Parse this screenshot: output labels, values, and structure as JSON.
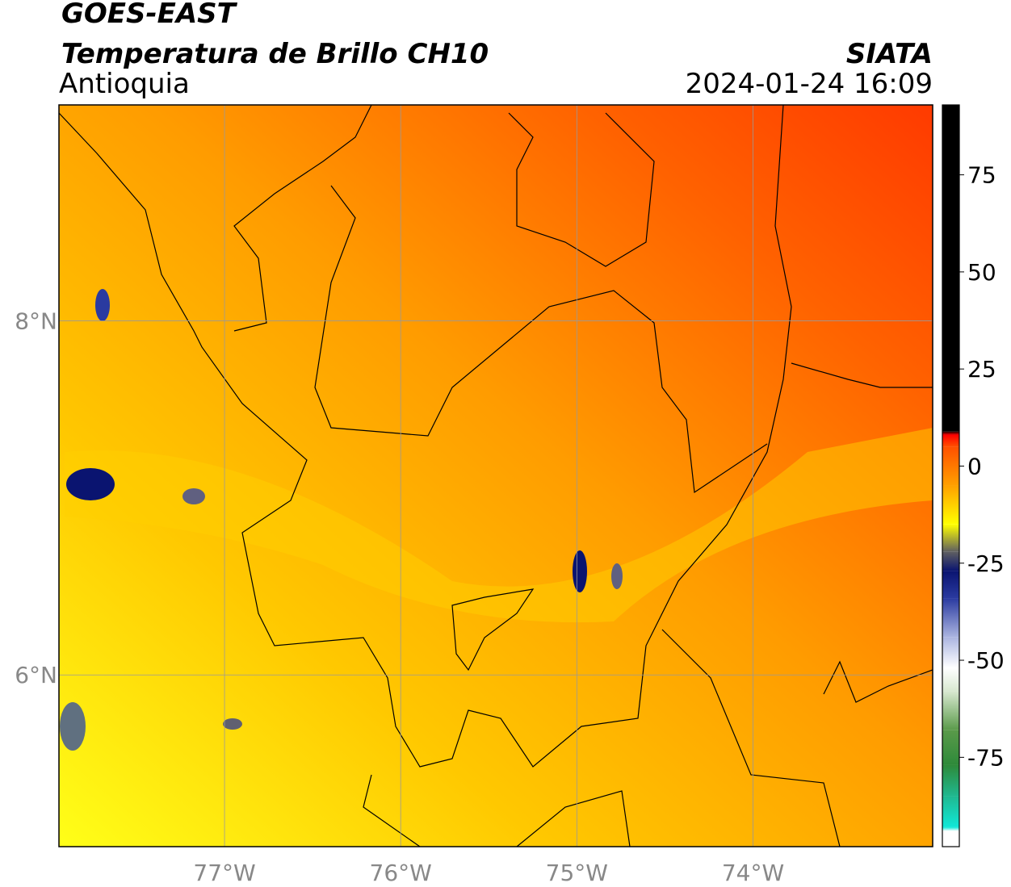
{
  "map": {
    "title": "GOES-EAST",
    "subtitle": "Temperatura de Brillo CH10",
    "region": "Antioquia",
    "source": "SIATA",
    "timestamp": "2024-01-24 16:09",
    "xlim": [
      -77.94,
      -72.98
    ],
    "ylim": [
      5.03,
      9.22
    ],
    "xticks": [
      {
        "value": -77,
        "label": "77°W"
      },
      {
        "value": -76,
        "label": "76°W"
      },
      {
        "value": -75,
        "label": "75°W"
      },
      {
        "value": -74,
        "label": "74°W"
      }
    ],
    "yticks": [
      {
        "value": 6,
        "label": "6°N"
      },
      {
        "value": 8,
        "label": "8°N"
      }
    ],
    "grid": true
  },
  "colorbar": {
    "lim": [
      -98,
      93
    ],
    "ticks": [
      75,
      50,
      25,
      0,
      -25,
      -50,
      -75
    ],
    "colorscale": [
      {
        "value": -98,
        "color": "#ffffff"
      },
      {
        "value": -94,
        "color": "#ffffff"
      },
      {
        "value": -93,
        "color": "#10e8d8"
      },
      {
        "value": -85,
        "color": "#20b890"
      },
      {
        "value": -77,
        "color": "#2e8a3a"
      },
      {
        "value": -68,
        "color": "#5a9a4a"
      },
      {
        "value": -58,
        "color": "#d8e8d0"
      },
      {
        "value": -52,
        "color": "#ffffff"
      },
      {
        "value": -44,
        "color": "#aab4e0"
      },
      {
        "value": -34,
        "color": "#2a3aa0"
      },
      {
        "value": -27,
        "color": "#0a1470"
      },
      {
        "value": -22,
        "color": "#606060"
      },
      {
        "value": -15,
        "color": "#ffff00"
      },
      {
        "value": -5,
        "color": "#ffa000"
      },
      {
        "value": 5,
        "color": "#ff5000"
      },
      {
        "value": 8,
        "color": "#ff0000"
      },
      {
        "value": 9,
        "color": "#000000"
      },
      {
        "value": 93,
        "color": "#000000"
      }
    ]
  }
}
